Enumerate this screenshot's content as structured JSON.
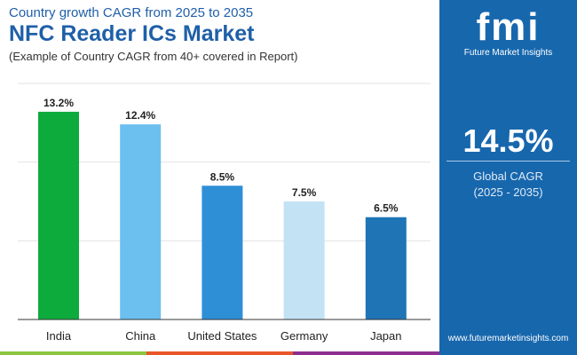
{
  "header": {
    "subtitle": "Country growth CAGR from 2025 to 2035",
    "title": "NFC Reader ICs Market",
    "note": "(Example of Country CAGR from 40+ covered in Report)"
  },
  "panel": {
    "logo_text": "fmi",
    "brand": "Future Market Insights",
    "global_value": "14.5%",
    "global_label": "Global CAGR",
    "global_period": "(2025 - 2035)",
    "url": "www.futuremarketinsights.com"
  },
  "chart_data": {
    "type": "bar",
    "title": "NFC Reader ICs Market",
    "categories": [
      "India",
      "China",
      "United States",
      "Germany",
      "Japan"
    ],
    "values": [
      13.2,
      12.4,
      8.5,
      7.5,
      6.5
    ],
    "labels": [
      "13.2%",
      "12.4%",
      "8.5%",
      "7.5%",
      "6.5%"
    ],
    "colors": [
      "#0dab3c",
      "#6cc0f0",
      "#2e8fd6",
      "#c3e2f4",
      "#1f74b5"
    ],
    "ylim": [
      0,
      15
    ],
    "grid": true
  }
}
